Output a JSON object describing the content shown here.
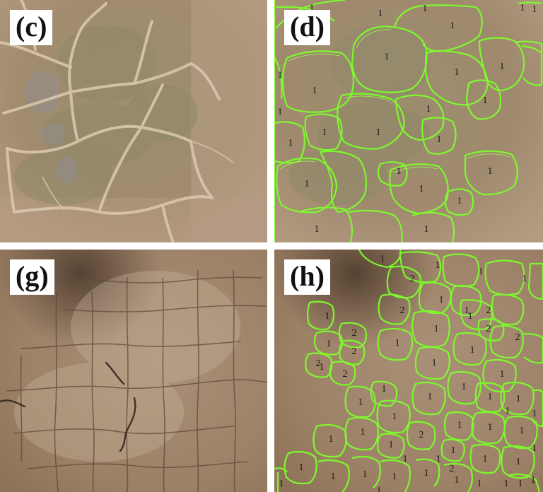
{
  "panels": {
    "c": {
      "label": "(c)"
    },
    "d": {
      "label": "(d)",
      "numbers": [
        "1",
        "1",
        "1",
        "1",
        "1",
        "1",
        "1",
        "1",
        "1",
        "1",
        "1",
        "1",
        "1",
        "1",
        "1",
        "1",
        "1",
        "1",
        "1",
        "1",
        "1",
        "1",
        "1",
        "1",
        "1"
      ]
    },
    "g": {
      "label": "(g)"
    },
    "h": {
      "label": "(h)",
      "numbers": [
        "1",
        "1",
        "2",
        "1",
        "1",
        "2",
        "1",
        "1",
        "1",
        "2",
        "1",
        "1",
        "2",
        "1",
        "2",
        "2",
        "1",
        "1",
        "1",
        "1",
        "2",
        "2",
        "1",
        "2",
        "1",
        "1",
        "1",
        "1",
        "1",
        "1",
        "1",
        "1",
        "1",
        "1",
        "2",
        "1",
        "1",
        "1",
        "1",
        "1",
        "1",
        "1",
        "1",
        "1",
        "1",
        "1",
        "1",
        "1",
        "1",
        "2",
        "1",
        "1",
        "1",
        "1",
        "1",
        "1",
        "1",
        "1",
        "1"
      ]
    }
  },
  "colors": {
    "segmentation_outline": "#7cff2a",
    "top_row_ground": "#a28c6e",
    "bottom_row_ground": "#9a8166",
    "number_text": "#1a1a1a"
  }
}
